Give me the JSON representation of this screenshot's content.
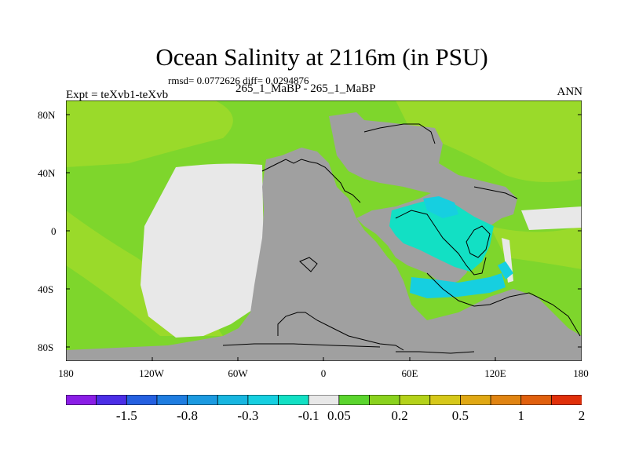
{
  "title": "Ocean Salinity at 2116m (in PSU)",
  "stats": "rmsd= 0.0772626 diff= 0.0294876",
  "left_label": "Expt = teXvb1-teXvb",
  "center_label": "265_1_MaBP - 265_1_MaBP",
  "right_label": "ANN",
  "y_axis": {
    "ticks": [
      "80N",
      "40N",
      "0",
      "40S",
      "80S"
    ],
    "values": [
      80,
      40,
      0,
      -40,
      -80
    ],
    "range": [
      -90,
      90
    ]
  },
  "x_axis": {
    "ticks": [
      "180",
      "120W",
      "60W",
      "0",
      "60E",
      "120E",
      "180"
    ],
    "values": [
      -180,
      -120,
      -60,
      0,
      60,
      120,
      180
    ],
    "range": [
      -180,
      180
    ]
  },
  "colorbar": {
    "colors": [
      "#8a1ee6",
      "#4b2ee6",
      "#2560e0",
      "#1f7de0",
      "#1c9ae0",
      "#18b6e0",
      "#16cfe0",
      "#12e0c4",
      "#e8e8e8",
      "#5bd52e",
      "#8ad21e",
      "#b4d21a",
      "#d6c81a",
      "#e0a814",
      "#e08412",
      "#e0600e",
      "#e0300a"
    ],
    "labels": [
      "-1.5",
      "-0.8",
      "-0.3",
      "-0.1",
      "0.05",
      "0.2",
      "0.5",
      "1",
      "2"
    ],
    "label_boundaries": [
      2,
      4,
      6,
      8,
      9,
      11,
      13,
      15,
      17
    ]
  },
  "colors": {
    "land": "#a0a0a0",
    "background_field": "#7ed62c",
    "outline": "#000000"
  }
}
